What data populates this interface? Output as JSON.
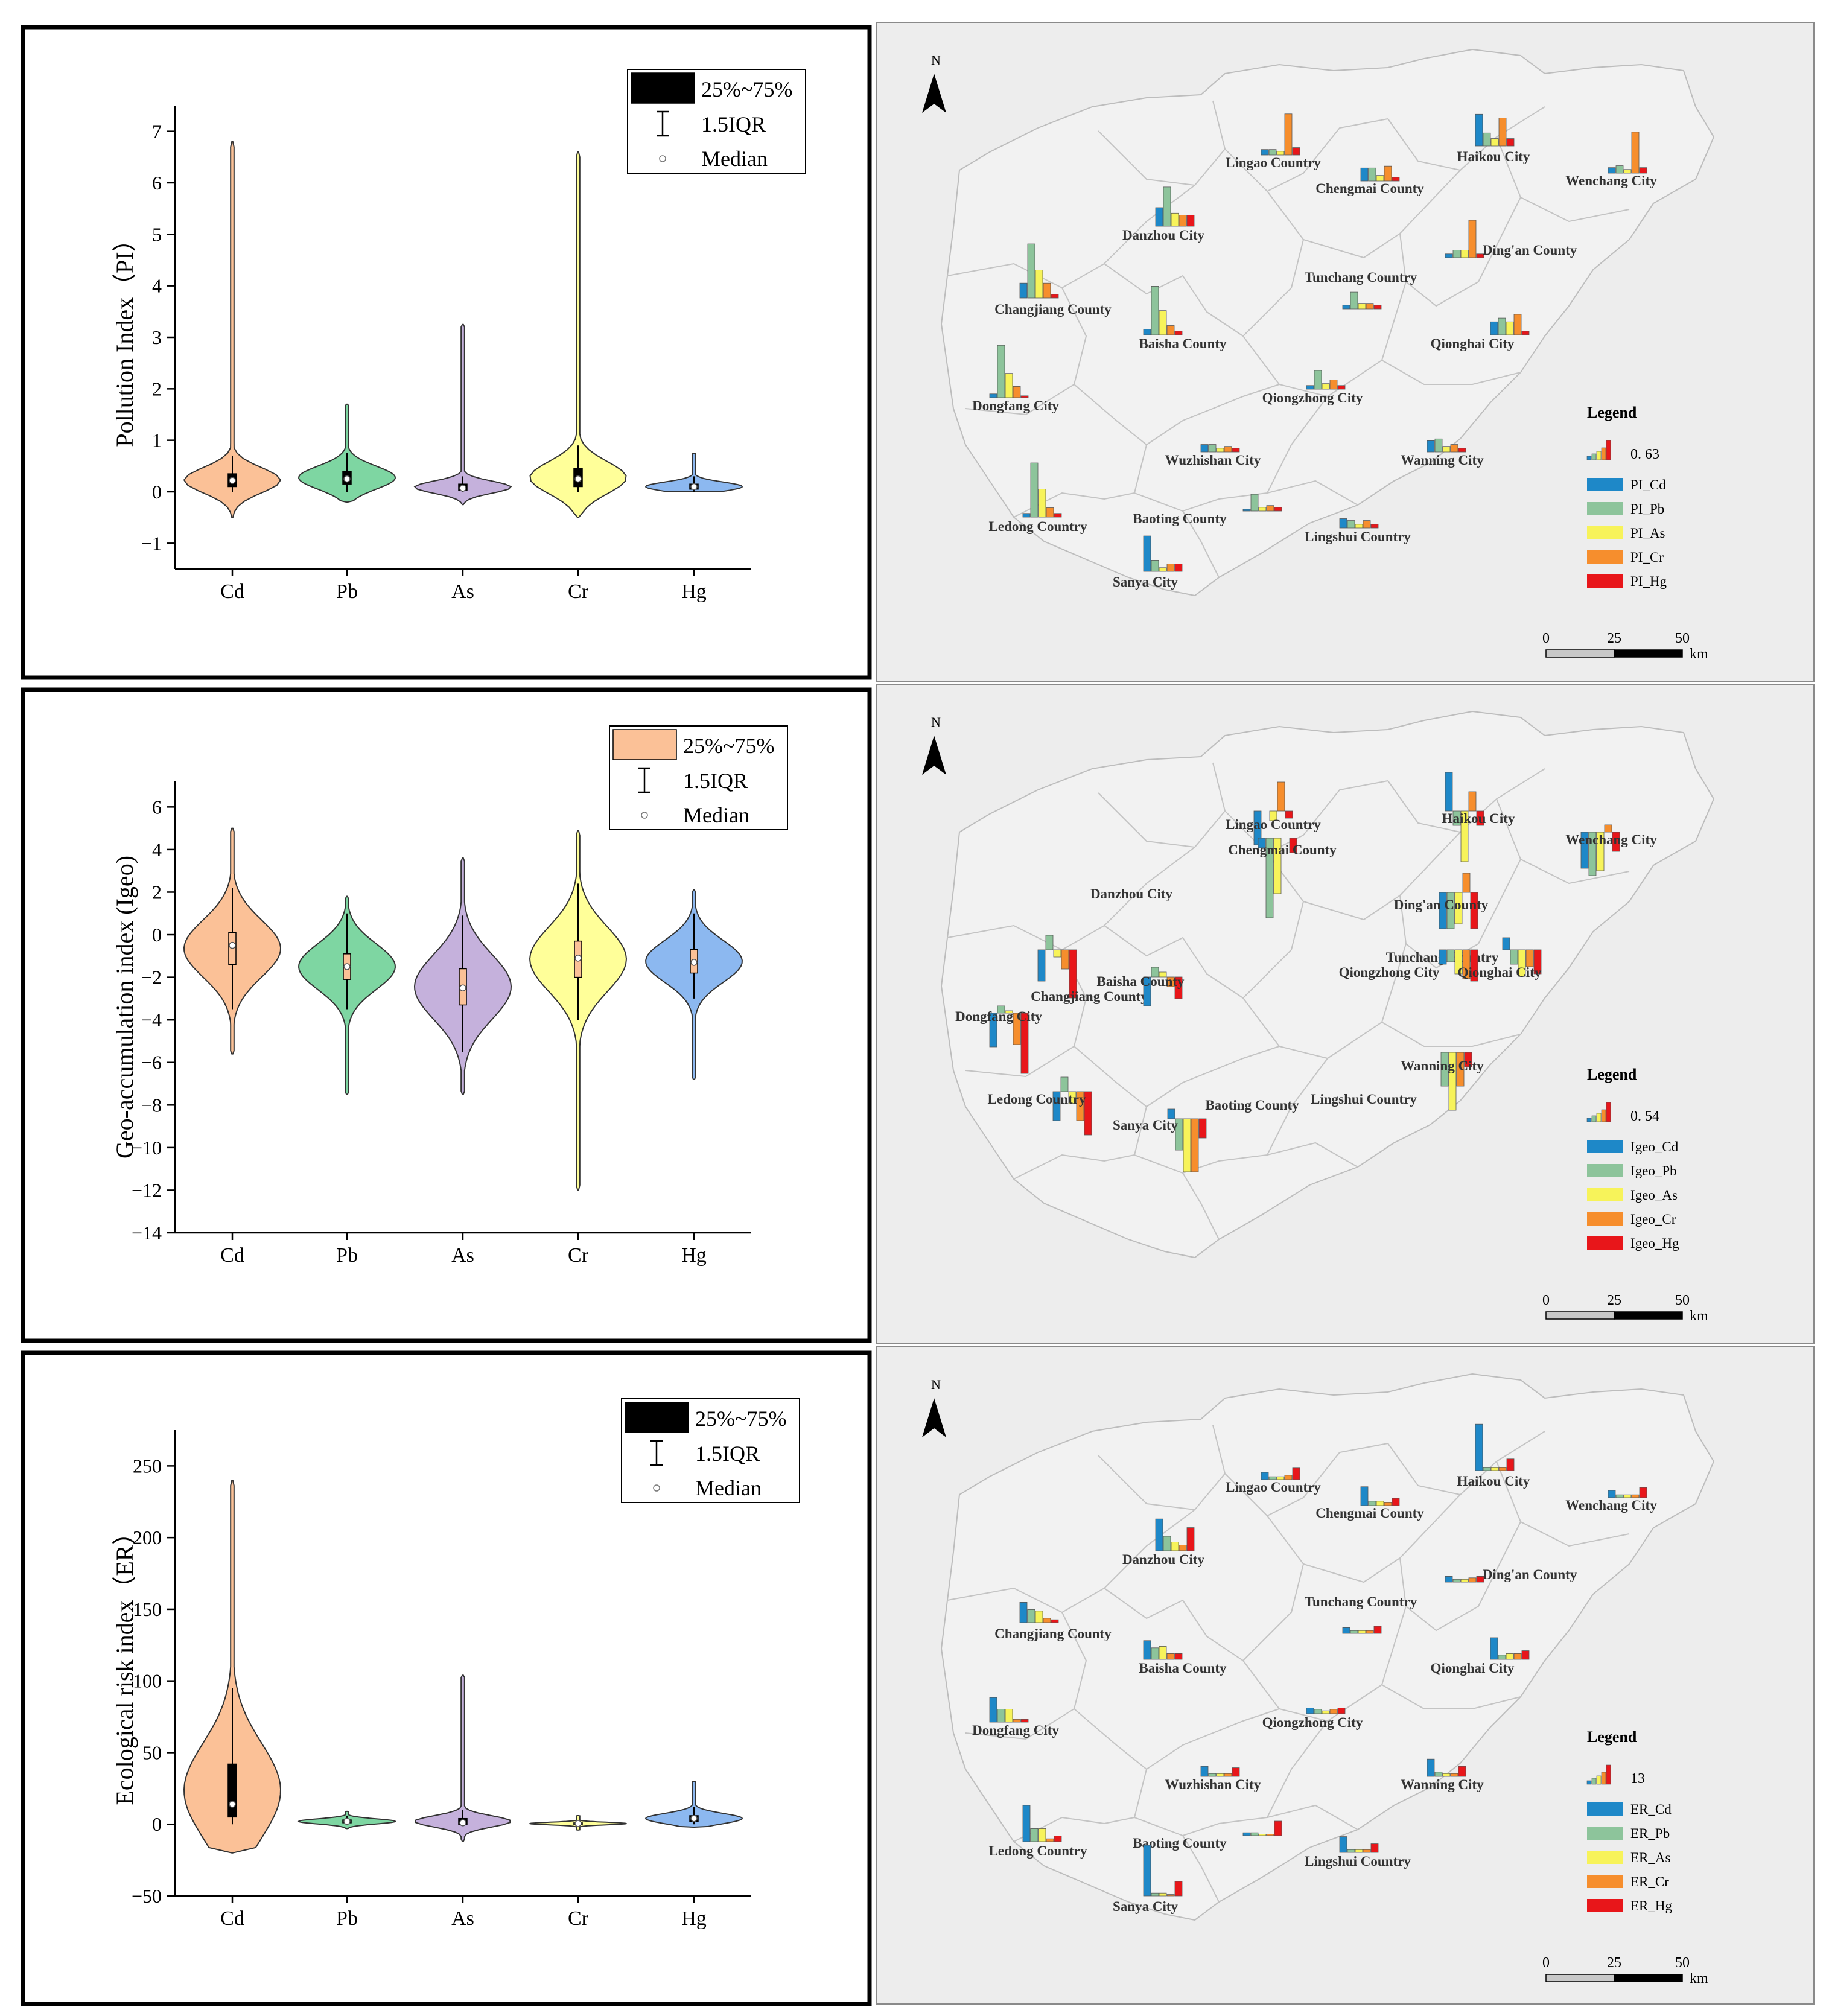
{
  "chart_data": [
    {
      "type": "violin",
      "id": "pi",
      "ylabel": "Pollution Index（PI）",
      "ylim": [
        -1.5,
        7.5
      ],
      "yticks": [
        -1,
        0,
        1,
        2,
        3,
        4,
        5,
        6,
        7
      ],
      "categories": [
        "Cd",
        "Pb",
        "As",
        "Cr",
        "Hg"
      ],
      "colors": [
        "#FBC197",
        "#7ED6A2",
        "#C5B1DC",
        "#FFFF99",
        "#8CB8F0"
      ],
      "box_fill": "#000000",
      "legend": {
        "box": "25%~75%",
        "whisker": "1.5IQR",
        "median": "Median"
      },
      "series": [
        {
          "name": "Cd",
          "min": -0.5,
          "max": 6.8,
          "q1": 0.1,
          "q3": 0.35,
          "median": 0.22,
          "wlo": 0.0,
          "whi": 0.7
        },
        {
          "name": "Pb",
          "min": -0.2,
          "max": 1.7,
          "q1": 0.15,
          "q3": 0.4,
          "median": 0.25,
          "wlo": 0.0,
          "whi": 0.75
        },
        {
          "name": "As",
          "min": -0.25,
          "max": 3.25,
          "q1": 0.03,
          "q3": 0.15,
          "median": 0.07,
          "wlo": 0.0,
          "whi": 0.3
        },
        {
          "name": "Cr",
          "min": -0.5,
          "max": 6.6,
          "q1": 0.1,
          "q3": 0.45,
          "median": 0.25,
          "wlo": 0.0,
          "whi": 0.9
        },
        {
          "name": "Hg",
          "min": 0.0,
          "max": 0.75,
          "q1": 0.05,
          "q3": 0.15,
          "median": 0.1,
          "wlo": 0.0,
          "whi": 0.3
        }
      ]
    },
    {
      "type": "violin",
      "id": "igeo",
      "ylabel": "Geo-accumulation index (Igeo)",
      "ylim": [
        -14,
        7.2
      ],
      "yticks": [
        -14,
        -12,
        -10,
        -8,
        -6,
        -4,
        -2,
        0,
        2,
        4,
        6
      ],
      "categories": [
        "Cd",
        "Pb",
        "As",
        "Cr",
        "Hg"
      ],
      "colors": [
        "#FBC197",
        "#7ED6A2",
        "#C5B1DC",
        "#FFFF99",
        "#8CB8F0"
      ],
      "box_fill": "#FBC197",
      "legend": {
        "box": "25%~75%",
        "whisker": "1.5IQR",
        "median": "Median"
      },
      "series": [
        {
          "name": "Cd",
          "min": -5.6,
          "max": 5.0,
          "q1": -1.4,
          "q3": 0.1,
          "median": -0.5,
          "wlo": -3.5,
          "whi": 2.2
        },
        {
          "name": "Pb",
          "min": -7.5,
          "max": 1.8,
          "q1": -2.1,
          "q3": -0.9,
          "median": -1.5,
          "wlo": -3.5,
          "whi": 1.0
        },
        {
          "name": "As",
          "min": -7.5,
          "max": 3.6,
          "q1": -3.3,
          "q3": -1.6,
          "median": -2.5,
          "wlo": -5.5,
          "whi": 0.9
        },
        {
          "name": "Cr",
          "min": -12.0,
          "max": 4.9,
          "q1": -2.0,
          "q3": -0.3,
          "median": -1.1,
          "wlo": -4.0,
          "whi": 2.4
        },
        {
          "name": "Hg",
          "min": -6.8,
          "max": 2.1,
          "q1": -1.8,
          "q3": -0.7,
          "median": -1.3,
          "wlo": -3.0,
          "whi": 1.0
        }
      ]
    },
    {
      "type": "violin",
      "id": "er",
      "ylabel": "Ecological risk index（ER）",
      "ylim": [
        -50,
        275
      ],
      "yticks": [
        -50,
        0,
        50,
        100,
        150,
        200,
        250
      ],
      "categories": [
        "Cd",
        "Pb",
        "As",
        "Cr",
        "Hg"
      ],
      "colors": [
        "#FBC197",
        "#7ED6A2",
        "#C5B1DC",
        "#FFFF99",
        "#8CB8F0"
      ],
      "box_fill": "#000000",
      "legend": {
        "box": "25%~75%",
        "whisker": "1.5IQR",
        "median": "Median"
      },
      "series": [
        {
          "name": "Cd",
          "min": -20,
          "max": 240,
          "q1": 5,
          "q3": 42,
          "median": 14,
          "wlo": 0,
          "whi": 95
        },
        {
          "name": "Pb",
          "min": -3,
          "max": 9,
          "q1": 1,
          "q3": 3,
          "median": 2,
          "wlo": 0,
          "whi": 6
        },
        {
          "name": "As",
          "min": -12,
          "max": 104,
          "q1": 0,
          "q3": 4,
          "median": 1,
          "wlo": 0,
          "whi": 10
        },
        {
          "name": "Cr",
          "min": -4,
          "max": 6,
          "q1": 0,
          "q3": 1,
          "median": 0.5,
          "wlo": 0,
          "whi": 3
        },
        {
          "name": "Hg",
          "min": -2,
          "max": 30,
          "q1": 2,
          "q3": 6,
          "median": 4,
          "wlo": 0,
          "whi": 12
        }
      ]
    },
    {
      "type": "map_bar",
      "id": "map_pi",
      "legend_title": "Legend",
      "scale_label": "0. 63",
      "series_names": [
        "PI_Cd",
        "PI_Pb",
        "PI_As",
        "PI_Cr",
        "PI_Hg"
      ],
      "scale_ticks": [
        "0",
        "25",
        "50"
      ],
      "scale_unit": "km",
      "north": "N",
      "counties": [
        {
          "name": "Lingao Country",
          "values": [
            0.15,
            0.15,
            0.1,
            1.1,
            0.2
          ]
        },
        {
          "name": "Haikou City",
          "values": [
            0.85,
            0.35,
            0.2,
            0.75,
            0.2
          ]
        },
        {
          "name": "Chengmai County",
          "values": [
            0.35,
            0.35,
            0.15,
            0.4,
            0.1
          ]
        },
        {
          "name": "Wenchang City",
          "values": [
            0.15,
            0.2,
            0.1,
            1.1,
            0.15
          ]
        },
        {
          "name": "Danzhou City",
          "values": [
            0.5,
            1.05,
            0.35,
            0.3,
            0.3
          ]
        },
        {
          "name": "Ding'an County",
          "values": [
            0.1,
            0.2,
            0.2,
            1.0,
            0.1
          ]
        },
        {
          "name": "Changjiang County",
          "values": [
            0.4,
            1.45,
            0.75,
            0.4,
            0.1
          ]
        },
        {
          "name": "Tunchang Country",
          "values": [
            0.1,
            0.45,
            0.15,
            0.15,
            0.1
          ]
        },
        {
          "name": "Baisha County",
          "values": [
            0.15,
            1.3,
            0.65,
            0.25,
            0.1
          ]
        },
        {
          "name": "Qionghai City",
          "values": [
            0.35,
            0.45,
            0.35,
            0.55,
            0.1
          ]
        },
        {
          "name": "Dongfang City",
          "values": [
            0.1,
            1.4,
            0.65,
            0.3,
            0.05
          ]
        },
        {
          "name": "Qiongzhong City",
          "values": [
            0.1,
            0.5,
            0.15,
            0.25,
            0.1
          ]
        },
        {
          "name": "Wuzhishan City",
          "values": [
            0.2,
            0.2,
            0.1,
            0.15,
            0.1
          ]
        },
        {
          "name": "Wanning City",
          "values": [
            0.3,
            0.35,
            0.15,
            0.2,
            0.1
          ]
        },
        {
          "name": "Ledong Country",
          "values": [
            0.1,
            1.45,
            0.75,
            0.25,
            0.1
          ]
        },
        {
          "name": "Baoting County",
          "values": [
            0.05,
            0.45,
            0.1,
            0.15,
            0.1
          ]
        },
        {
          "name": "Lingshui Country",
          "values": [
            0.25,
            0.2,
            0.1,
            0.2,
            0.1
          ]
        },
        {
          "name": "Sanya City",
          "values": [
            0.95,
            0.3,
            0.1,
            0.2,
            0.2
          ]
        }
      ]
    },
    {
      "type": "map_bar",
      "id": "map_igeo",
      "legend_title": "Legend",
      "scale_label": "0. 54",
      "series_names": [
        "Igeo_Cd",
        "Igeo_Pb",
        "Igeo_As",
        "Igeo_Cr",
        "Igeo_Hg"
      ],
      "scale_ticks": [
        "0",
        "25",
        "50"
      ],
      "scale_unit": "km",
      "north": "N",
      "counties": [
        {
          "name": "Lingao Country",
          "values": [
            -1.4,
            0.0,
            -0.4,
            1.2,
            -0.3
          ]
        },
        {
          "name": "Chengmai County",
          "values": [
            -0.4,
            -3.3,
            -2.3,
            0.0,
            -0.6
          ]
        },
        {
          "name": "Haikou City",
          "values": [
            1.6,
            -0.6,
            -2.1,
            0.8,
            -0.6
          ]
        },
        {
          "name": "Wenchang City",
          "values": [
            -1.5,
            -1.8,
            -1.6,
            0.3,
            -0.8
          ]
        },
        {
          "name": "Danzhou City",
          "values": [
            0,
            0,
            0,
            0,
            0
          ]
        },
        {
          "name": "Ding'an County",
          "values": [
            -1.5,
            -1.5,
            -1.3,
            0.8,
            -1.5
          ]
        },
        {
          "name": "Tunchang Country",
          "values": [
            0,
            0,
            0,
            0,
            0
          ]
        },
        {
          "name": "Qiongzhong City",
          "values": [
            -0.6,
            -0.5,
            -1.0,
            -1.2,
            -1.3
          ]
        },
        {
          "name": "Qionghai City",
          "values": [
            0.5,
            -0.6,
            -1.1,
            -0.7,
            -1.0
          ]
        },
        {
          "name": "Changjiang County",
          "values": [
            -1.3,
            0.6,
            -0.3,
            -0.8,
            -2.0
          ]
        },
        {
          "name": "Baisha County",
          "values": [
            -1.2,
            0.4,
            0.2,
            -0.4,
            -0.9
          ]
        },
        {
          "name": "Dongfang City",
          "values": [
            -1.4,
            0.3,
            0.1,
            -1.3,
            -2.5
          ]
        },
        {
          "name": "Wanning City",
          "values": [
            0.0,
            -1.4,
            -2.4,
            -1.4,
            -0.6
          ]
        },
        {
          "name": "Ledong Country",
          "values": [
            -1.2,
            0.6,
            -0.5,
            -1.2,
            -1.8
          ]
        },
        {
          "name": "Baoting County",
          "values": [
            0,
            0,
            0,
            0,
            0
          ]
        },
        {
          "name": "Lingshui Country",
          "values": [
            0,
            0,
            0,
            0,
            0
          ]
        },
        {
          "name": "Sanya City",
          "values": [
            0.4,
            -1.3,
            -2.2,
            -2.2,
            -0.8
          ]
        }
      ]
    },
    {
      "type": "map_bar",
      "id": "map_er",
      "legend_title": "Legend",
      "scale_label": "13",
      "series_names": [
        "ER_Cd",
        "ER_Pb",
        "ER_As",
        "ER_Cr",
        "ER_Hg"
      ],
      "scale_ticks": [
        "0",
        "25",
        "50"
      ],
      "scale_unit": "km",
      "north": "N",
      "counties": [
        {
          "name": "Lingao Country",
          "values": [
            5,
            2,
            2,
            3,
            8
          ]
        },
        {
          "name": "Haikou City",
          "values": [
            32,
            2,
            2,
            2,
            8
          ]
        },
        {
          "name": "Chengmai County",
          "values": [
            13,
            3,
            3,
            2,
            5
          ]
        },
        {
          "name": "Wenchang City",
          "values": [
            5,
            2,
            2,
            2,
            7
          ]
        },
        {
          "name": "Danzhou City",
          "values": [
            22,
            10,
            6,
            4,
            16
          ]
        },
        {
          "name": "Ding'an County",
          "values": [
            4,
            2,
            2,
            3,
            4
          ]
        },
        {
          "name": "Changjiang County",
          "values": [
            14,
            9,
            8,
            3,
            2
          ]
        },
        {
          "name": "Tunchang Country",
          "values": [
            4,
            2,
            2,
            2,
            5
          ]
        },
        {
          "name": "Baisha County",
          "values": [
            13,
            8,
            9,
            4,
            4
          ]
        },
        {
          "name": "Qionghai City",
          "values": [
            15,
            3,
            4,
            4,
            6
          ]
        },
        {
          "name": "Dongfang City",
          "values": [
            17,
            9,
            9,
            2,
            2
          ]
        },
        {
          "name": "Qiongzhong City",
          "values": [
            4,
            3,
            2,
            3,
            4
          ]
        },
        {
          "name": "Wuzhishan City",
          "values": [
            7,
            2,
            2,
            2,
            6
          ]
        },
        {
          "name": "Wanning City",
          "values": [
            12,
            3,
            2,
            2,
            7
          ]
        },
        {
          "name": "Ledong Country",
          "values": [
            25,
            9,
            9,
            2,
            4
          ]
        },
        {
          "name": "Baoting County",
          "values": [
            2,
            2,
            1,
            1,
            10
          ]
        },
        {
          "name": "Lingshui Country",
          "values": [
            11,
            2,
            2,
            2,
            6
          ]
        },
        {
          "name": "Sanya City",
          "values": [
            35,
            2,
            2,
            1,
            10
          ]
        }
      ]
    }
  ]
}
